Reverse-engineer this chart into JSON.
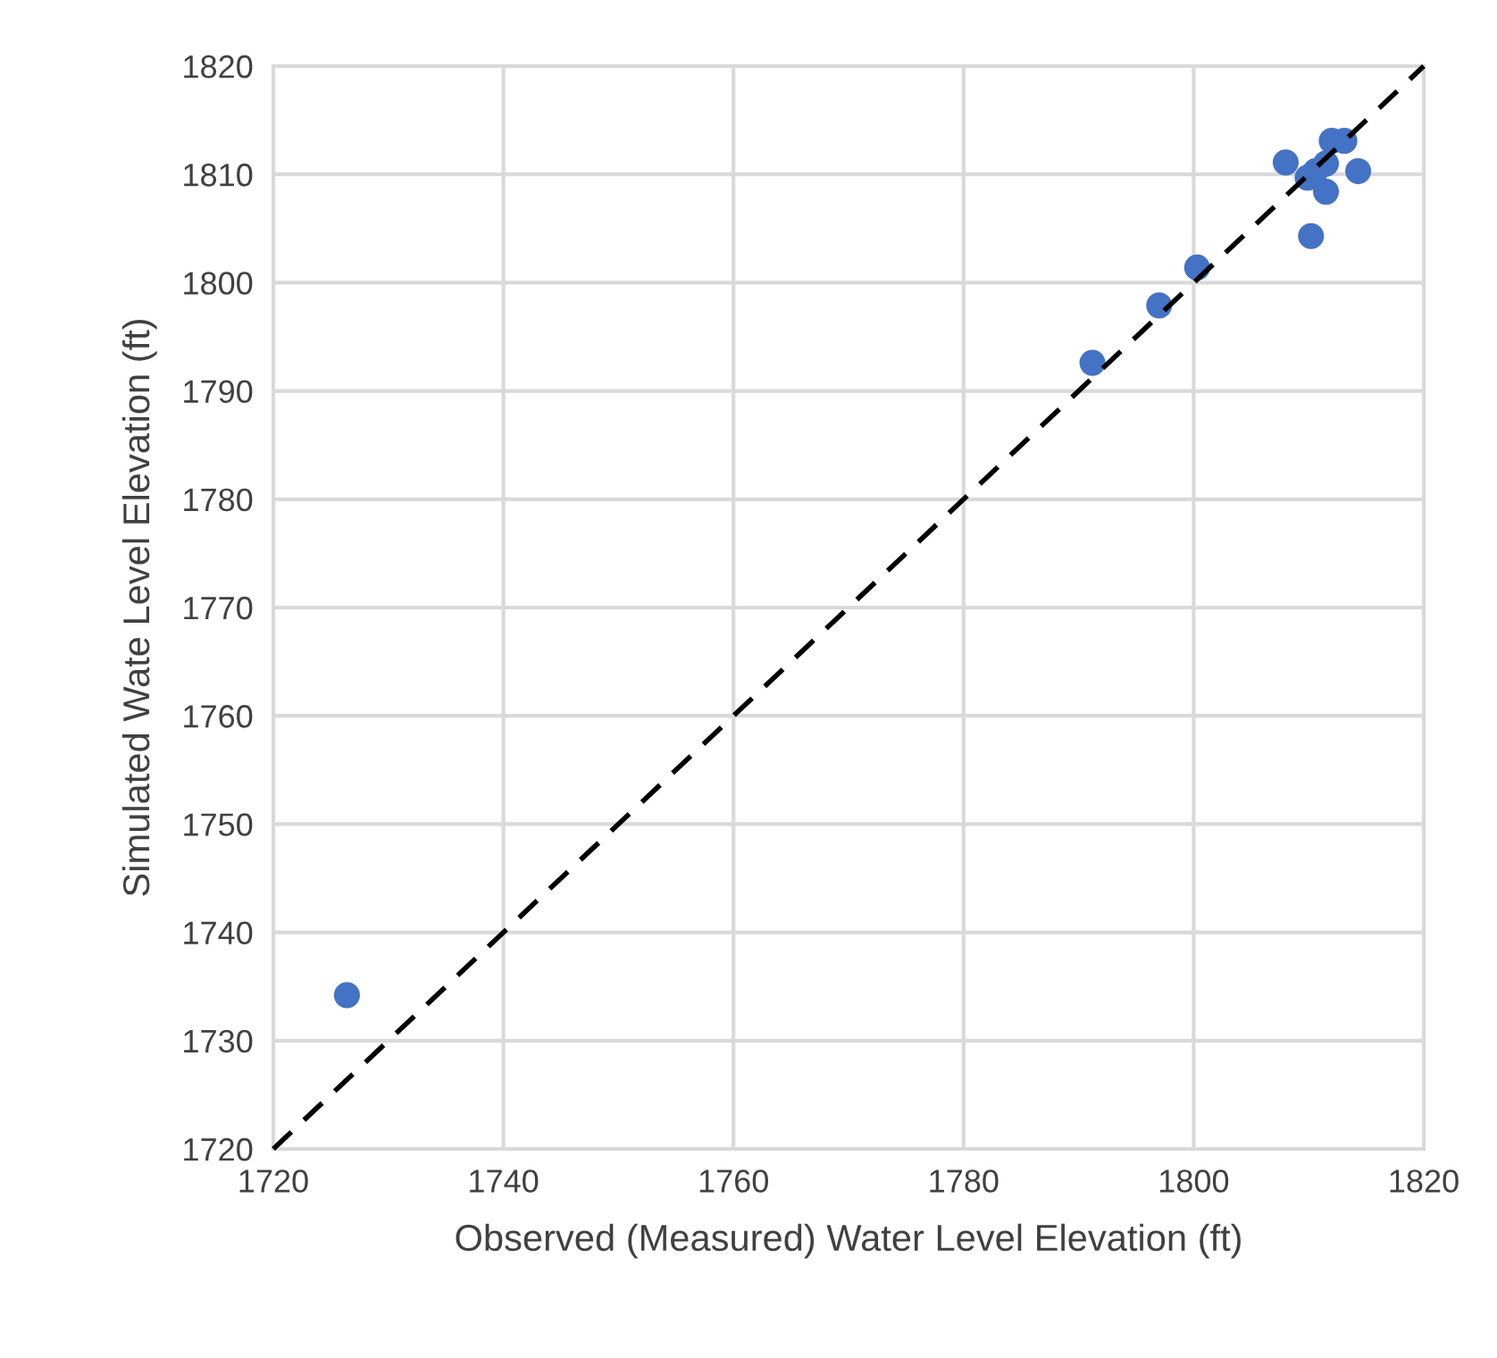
{
  "chart_data": {
    "type": "scatter",
    "xlabel": "Observed (Measured) Water Level Elevation (ft)",
    "ylabel": "Simulated Wate Level Elevation (ft)",
    "xlim": [
      1720,
      1820
    ],
    "ylim": [
      1720,
      1820
    ],
    "xticks": [
      1720,
      1740,
      1760,
      1780,
      1800,
      1820
    ],
    "yticks": [
      1720,
      1730,
      1740,
      1750,
      1760,
      1770,
      1780,
      1790,
      1800,
      1810,
      1820
    ],
    "grid": true,
    "legend": false,
    "marker": "circle",
    "series": [
      {
        "color": "#4472c4",
        "x": [
          1726.4,
          1791.2,
          1797.0,
          1800.3,
          1808.0,
          1810.2,
          1812.0,
          1813.1,
          1814.3,
          1809.9,
          1811.5,
          1811.5,
          1810.6
        ],
        "values": [
          1734.2,
          1792.6,
          1797.9,
          1801.4,
          1811.1,
          1804.3,
          1813.1,
          1813.1,
          1810.3,
          1809.7,
          1808.4,
          1811.0,
          1810.3
        ]
      },
      {
        "type": "line",
        "color": "#000000",
        "line_style": "dashed",
        "marker": "none",
        "x": [
          1720,
          1820
        ],
        "values": [
          1720,
          1820
        ]
      }
    ]
  }
}
